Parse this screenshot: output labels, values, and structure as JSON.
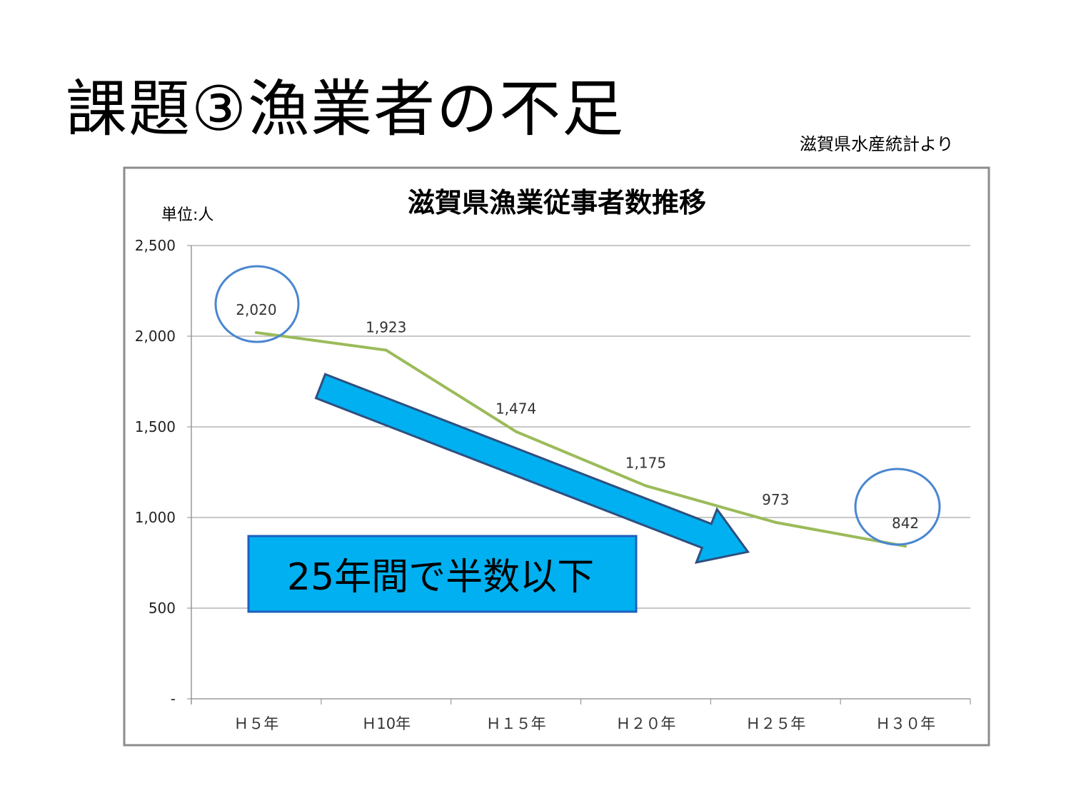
{
  "slide": {
    "title": "課題③漁業者の不足",
    "source": "滋賀県水産統計より",
    "callout": "25年間で半数以下"
  },
  "colors": {
    "line": "#9bbb59",
    "circle": "#4a86d0",
    "arrow": "#00b0f0",
    "arrow_border": "#2f4f7f",
    "box_border": "#1f5fbf"
  },
  "chart_data": {
    "type": "line",
    "title": "滋賀県漁業従事者数推移",
    "ylabel": "単位:人",
    "xlabel": "",
    "categories": [
      "Ｈ５年",
      "Ｈ10年",
      "Ｈ１５年",
      "Ｈ２０年",
      "Ｈ２５年",
      "Ｈ３０年"
    ],
    "series": [
      {
        "name": "漁業従事者数",
        "values": [
          2020,
          1923,
          1474,
          1175,
          973,
          842
        ]
      }
    ],
    "data_labels": [
      "2,020",
      "1,923",
      "1,474",
      "1,175",
      "973",
      "842"
    ],
    "ylim": [
      0,
      2500
    ],
    "yticks": [
      0,
      500,
      1000,
      1500,
      2000,
      2500
    ],
    "ytick_labels": [
      "-",
      "500",
      "1,000",
      "1,500",
      "2,000",
      "2,500"
    ],
    "grid": true,
    "highlighted": [
      "Ｈ５年",
      "Ｈ３０年"
    ]
  }
}
